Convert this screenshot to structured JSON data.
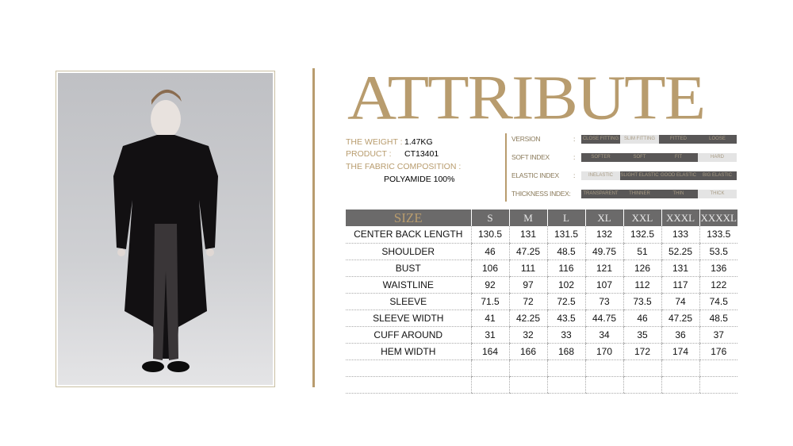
{
  "title": "ATTRIBUTE",
  "info": {
    "weight_label": "THE WEIGHT :",
    "weight": "1.47KG",
    "product_label": "PRODUCT :",
    "product": "CT13401",
    "fabric_label": "THE FABRIC COMPOSITION :",
    "fabric": "POLYAMIDE 100%"
  },
  "attributes": [
    {
      "label": "VERSION",
      "colon": ":",
      "options": [
        "CLOSE FITTING",
        "SLIM FITTING",
        "FITTED",
        "LOOSE"
      ],
      "highlighted": [
        true,
        false,
        true,
        true
      ]
    },
    {
      "label": "SOFT INDEX",
      "colon": ":",
      "options": [
        "SOFTER",
        "SOFT",
        "FIT",
        "HARD"
      ],
      "highlighted": [
        true,
        true,
        true,
        false
      ]
    },
    {
      "label": "ELASTIC INDEX",
      "colon": ":",
      "options": [
        "INELASTIC",
        "SLIGHT ELASTIC",
        "GOOD ELASTIC",
        "BIG ELASTIC"
      ],
      "highlighted": [
        false,
        true,
        true,
        true
      ]
    },
    {
      "label": "THICKNESS INDEX:",
      "colon": "",
      "options": [
        "TRANSPARENT",
        "THINNER",
        "THIN",
        "THICK"
      ],
      "highlighted": [
        true,
        true,
        true,
        false
      ]
    }
  ],
  "colors": {
    "gold": "#b89c6e",
    "header": "#6b6a6a",
    "segment_on": "#595757",
    "segment_off": "#e4e4e4"
  },
  "size_table": {
    "headers": [
      "SIZE",
      "S",
      "M",
      "L",
      "XL",
      "XXL",
      "XXXL",
      "XXXXL"
    ],
    "rows": [
      [
        "CENTER BACK LENGTH",
        "130.5",
        "131",
        "131.5",
        "132",
        "132.5",
        "133",
        "133.5"
      ],
      [
        "SHOULDER",
        "46",
        "47.25",
        "48.5",
        "49.75",
        "51",
        "52.25",
        "53.5"
      ],
      [
        "BUST",
        "106",
        "111",
        "116",
        "121",
        "126",
        "131",
        "136"
      ],
      [
        "WAISTLINE",
        "92",
        "97",
        "102",
        "107",
        "112",
        "117",
        "122"
      ],
      [
        "SLEEVE",
        "71.5",
        "72",
        "72.5",
        "73",
        "73.5",
        "74",
        "74.5"
      ],
      [
        "SLEEVE WIDTH",
        "41",
        "42.25",
        "43.5",
        "44.75",
        "46",
        "47.25",
        "48.5"
      ],
      [
        "CUFF AROUND",
        "31",
        "32",
        "33",
        "34",
        "35",
        "36",
        "37"
      ],
      [
        "HEM WIDTH",
        "164",
        "166",
        "168",
        "170",
        "172",
        "174",
        "176"
      ],
      [
        "",
        "",
        "",
        "",
        "",
        "",
        "",
        ""
      ],
      [
        "",
        "",
        "",
        "",
        "",
        "",
        "",
        ""
      ]
    ]
  }
}
